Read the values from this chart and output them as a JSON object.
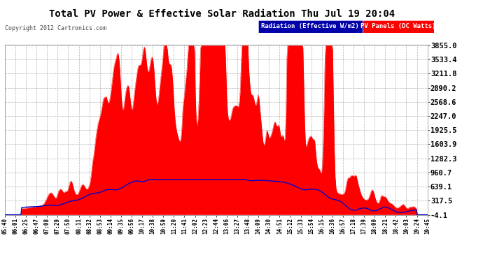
{
  "title": "Total PV Power & Effective Solar Radiation Thu Jul 19 20:04",
  "copyright": "Copyright 2012 Cartronics.com",
  "legend_blue": "Radiation (Effective W/m2)",
  "legend_red": "PV Panels (DC Watts)",
  "ymin": -4.1,
  "ymax": 3855.0,
  "yticks": [
    -4.1,
    317.5,
    639.1,
    960.7,
    1282.3,
    1603.9,
    1925.5,
    2247.0,
    2568.6,
    2890.2,
    3211.8,
    3533.4,
    3855.0
  ],
  "bg_color": "#FFFFFF",
  "plot_bg_color": "#FFFFFF",
  "red_color": "#FF0000",
  "blue_color": "#0000CC",
  "title_color": "#000000",
  "tick_color": "#000000",
  "grid_color": "#AAAAAA",
  "grid_style": "--",
  "n_points": 500,
  "x_labels": [
    "05:40",
    "06:01",
    "06:25",
    "06:47",
    "07:08",
    "07:29",
    "07:50",
    "08:11",
    "08:32",
    "08:53",
    "09:14",
    "09:35",
    "09:56",
    "10:17",
    "10:38",
    "10:59",
    "11:20",
    "11:41",
    "12:02",
    "12:23",
    "12:44",
    "13:06",
    "13:27",
    "13:48",
    "14:09",
    "14:30",
    "14:51",
    "15:12",
    "15:33",
    "15:54",
    "16:15",
    "16:36",
    "16:57",
    "17:18",
    "17:39",
    "18:00",
    "18:21",
    "18:42",
    "19:03",
    "19:24",
    "19:45"
  ]
}
